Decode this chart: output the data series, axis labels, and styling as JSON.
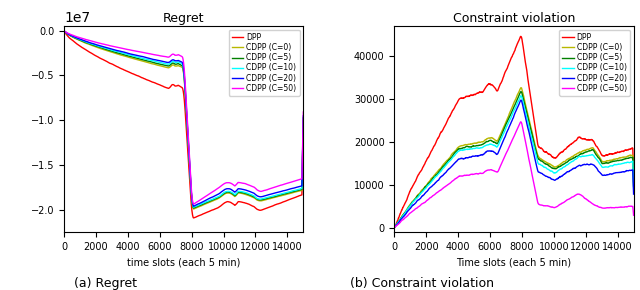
{
  "title_left": "Regret",
  "title_right": "Constraint violation",
  "xlabel_left": "time slots (each 5 min)",
  "xlabel_right": "Time slots (each 5 min)",
  "caption_left": "(a) Regret",
  "caption_right": "(b) Constraint violation",
  "legend_labels": [
    "DPP",
    "CDPP (C=0)",
    "CDPP (C=5)",
    "CDPP (C=10)",
    "CDPP (C=20)",
    "CDPP (C=50)"
  ],
  "colors": [
    "red",
    "#b8b800",
    "green",
    "cyan",
    "blue",
    "magenta"
  ],
  "x_max": 15000,
  "ylim_left": [
    -22500000.0,
    500000.0
  ],
  "ylim_right": [
    -1000,
    47000
  ],
  "figsize": [
    6.4,
    2.9
  ],
  "dpi": 100
}
